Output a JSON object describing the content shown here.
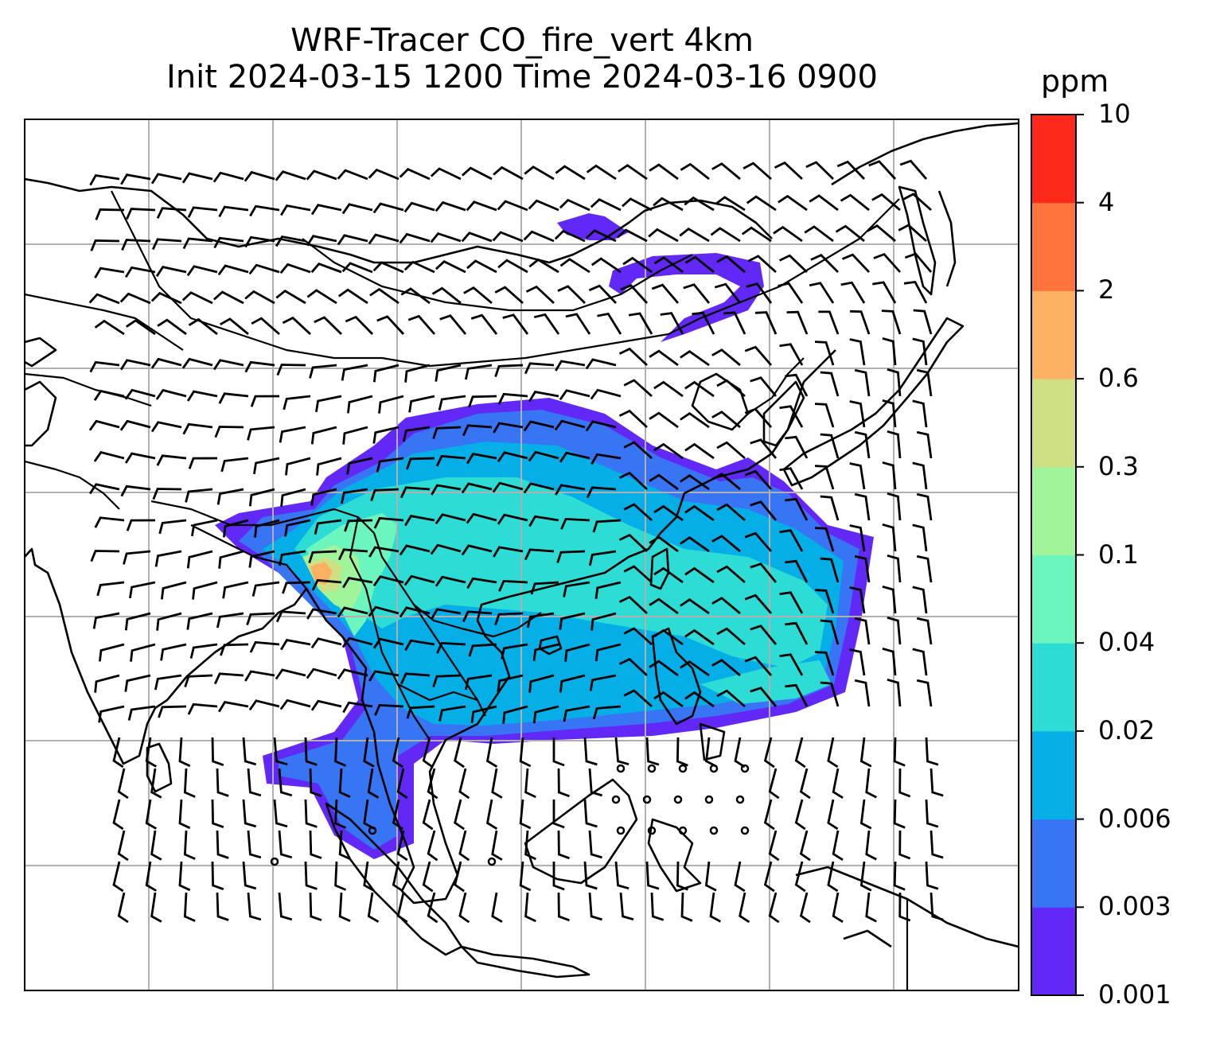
{
  "title": {
    "line1": "WRF-Tracer CO_fire_vert 4km",
    "line2": "Init 2024-03-15 1200 Time 2024-03-16 0900"
  },
  "colorbar": {
    "unit": "ppm",
    "levels": [
      "0.001",
      "0.003",
      "0.006",
      "0.02",
      "0.04",
      "0.1",
      "0.3",
      "0.6",
      "2",
      "4",
      "10"
    ],
    "colors": [
      "#6228f5",
      "#3875f5",
      "#04aee6",
      "#2edcd6",
      "#6cf6be",
      "#a0f49a",
      "#cfe084",
      "#fcb062",
      "#ff733c",
      "#fe281b"
    ]
  },
  "map": {
    "field": "CO_fire_vert",
    "overlays": [
      "coastlines",
      "country-borders",
      "lat-lon-gridlines",
      "wind-barbs"
    ],
    "gridlines": true
  }
}
